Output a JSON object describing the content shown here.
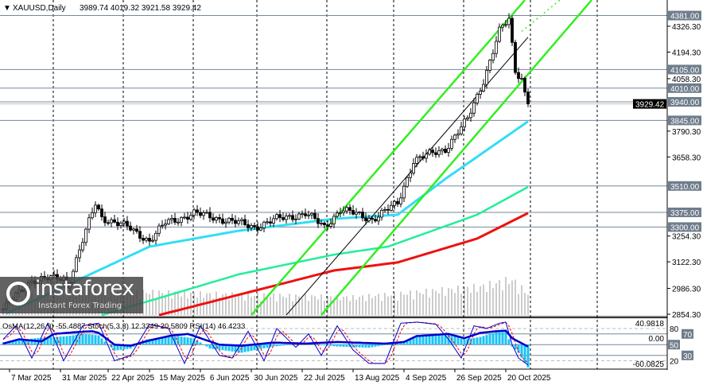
{
  "header": {
    "symbol": "XAUUSD,Daily",
    "ohlc": "3989.74 4019.32 3921.58 3929.42"
  },
  "indicator_label": "OsMA(12,26,9) -55.4887  Stoch(5,3,3) 12.3349 20.5809  RSI(14) 46.4233",
  "logo": {
    "brand": "instaforex",
    "tagline": "Instant Forex Trading"
  },
  "chart_data": {
    "type": "candlestick",
    "title": "XAUUSD,Daily",
    "bars": 166,
    "ylim": [
      2854.3,
      4381
    ],
    "price_ticks": [
      "4326.30",
      "4194.30",
      "4058.30",
      "3790.30",
      "3658.30",
      "3254.30",
      "3122.30",
      "2986.30",
      "2854.30"
    ],
    "price_tick_values": [
      4326.3,
      4194.3,
      4058.3,
      3790.3,
      3658.3,
      3254.3,
      3122.3,
      2986.3,
      2854.3
    ],
    "levels": [
      {
        "value": 4381,
        "label": "4381.00"
      },
      {
        "value": 4105,
        "label": "4105.00"
      },
      {
        "value": 4010,
        "label": "4010.00"
      },
      {
        "value": 3940,
        "label": "3940.00"
      },
      {
        "value": 3845,
        "label": "3845.00"
      },
      {
        "value": 3510,
        "label": "3510.00"
      },
      {
        "value": 3375,
        "label": "3375.00"
      },
      {
        "value": 3300,
        "label": "3300.00"
      }
    ],
    "current_price": {
      "value": 3929.42,
      "label": "3929.42"
    },
    "date_labels": [
      {
        "bar": 2,
        "label": "7 Mar 2025"
      },
      {
        "bar": 18,
        "label": "31 Mar 2025"
      },
      {
        "bar": 33,
        "label": "22 Apr 2025"
      },
      {
        "bar": 46,
        "label": "15 May 2025"
      },
      {
        "bar": 62,
        "label": "6 Jun 2025"
      },
      {
        "bar": 78,
        "label": "30 Jun 2025"
      },
      {
        "bar": 94,
        "label": "22 Jul 2025"
      },
      {
        "bar": 110,
        "label": "13 Aug 2025"
      },
      {
        "bar": 126,
        "label": "4 Sep 2025"
      },
      {
        "bar": 142,
        "label": "26 Sep 2025"
      },
      {
        "bar": 158,
        "label": "20 Oct 2025"
      }
    ],
    "grid_bars": [
      16,
      38,
      60,
      80,
      102,
      123,
      145,
      166,
      187
    ],
    "close_path": [
      [
        0,
        2880
      ],
      [
        9,
        3030
      ],
      [
        19,
        3040
      ],
      [
        20,
        2990
      ],
      [
        29,
        3420
      ],
      [
        31,
        3350
      ],
      [
        39,
        3300
      ],
      [
        46,
        3230
      ],
      [
        51,
        3320
      ],
      [
        60,
        3370
      ],
      [
        69,
        3340
      ],
      [
        79,
        3300
      ],
      [
        86,
        3340
      ],
      [
        95,
        3370
      ],
      [
        101,
        3300
      ],
      [
        106,
        3390
      ],
      [
        116,
        3340
      ],
      [
        124,
        3420
      ],
      [
        129,
        3640
      ],
      [
        139,
        3700
      ],
      [
        146,
        3850
      ],
      [
        151,
        4050
      ],
      [
        156,
        4300
      ],
      [
        159,
        4360
      ],
      [
        161,
        4100
      ],
      [
        163,
        4060
      ],
      [
        164,
        3989.74
      ],
      [
        165,
        3929.42
      ]
    ],
    "ma_fast": [
      [
        1,
        2858
      ],
      [
        46,
        3200
      ],
      [
        74,
        3281
      ],
      [
        104,
        3342
      ],
      [
        124,
        3363
      ],
      [
        139,
        3546
      ],
      [
        165,
        3840
      ]
    ],
    "ma_mid": [
      [
        31,
        2850
      ],
      [
        74,
        3058
      ],
      [
        104,
        3159
      ],
      [
        121,
        3200
      ],
      [
        149,
        3363
      ],
      [
        165,
        3505
      ]
    ],
    "ma_slow": [
      [
        49,
        2850
      ],
      [
        104,
        3078
      ],
      [
        124,
        3119
      ],
      [
        149,
        3241
      ],
      [
        165,
        3371
      ]
    ],
    "channel_lines": [
      {
        "from": [
          78,
          2850
        ],
        "to": [
          164,
          4460
        ]
      },
      {
        "from": [
          100,
          2850
        ],
        "to": [
          185,
          4460
        ]
      }
    ],
    "volume_path": [
      [
        0,
        25
      ],
      [
        30,
        35
      ],
      [
        60,
        30
      ],
      [
        110,
        25
      ],
      [
        125,
        30
      ],
      [
        150,
        40
      ],
      [
        160,
        50
      ],
      [
        165,
        30
      ]
    ],
    "oscillator": {
      "ylim": [
        -60.0825,
        40.9818
      ],
      "levels": [
        "80",
        "70",
        "50",
        "30",
        "20"
      ],
      "level_values": [
        80,
        70,
        50,
        30,
        20
      ],
      "axis_labels": [
        "40.9818",
        "-60.0825",
        "0.00"
      ],
      "osma": [
        [
          0,
          5
        ],
        [
          10,
          15
        ],
        [
          20,
          20
        ],
        [
          25,
          25
        ],
        [
          30,
          22
        ],
        [
          35,
          -15
        ],
        [
          40,
          -10
        ],
        [
          45,
          12
        ],
        [
          55,
          20
        ],
        [
          60,
          15
        ],
        [
          65,
          -10
        ],
        [
          75,
          -20
        ],
        [
          85,
          -5
        ],
        [
          95,
          3
        ],
        [
          105,
          -5
        ],
        [
          115,
          -8
        ],
        [
          125,
          5
        ],
        [
          130,
          20
        ],
        [
          140,
          25
        ],
        [
          145,
          12
        ],
        [
          150,
          18
        ],
        [
          155,
          30
        ],
        [
          158,
          30
        ],
        [
          160,
          -5
        ],
        [
          162,
          -20
        ],
        [
          165,
          -55.4887
        ]
      ],
      "rsi": [
        [
          0,
          52
        ],
        [
          5,
          60
        ],
        [
          12,
          56
        ],
        [
          16,
          70
        ],
        [
          22,
          73
        ],
        [
          28,
          75
        ],
        [
          30,
          72
        ],
        [
          35,
          50
        ],
        [
          40,
          48
        ],
        [
          46,
          58
        ],
        [
          53,
          67
        ],
        [
          58,
          70
        ],
        [
          62,
          62
        ],
        [
          68,
          50
        ],
        [
          75,
          48
        ],
        [
          85,
          54
        ],
        [
          95,
          52
        ],
        [
          105,
          55
        ],
        [
          115,
          53
        ],
        [
          120,
          52
        ],
        [
          126,
          55
        ],
        [
          130,
          66
        ],
        [
          140,
          70
        ],
        [
          145,
          62
        ],
        [
          150,
          72
        ],
        [
          155,
          75
        ],
        [
          158,
          76
        ],
        [
          160,
          62
        ],
        [
          165,
          46.42
        ]
      ],
      "stoch": [
        [
          0,
          60
        ],
        [
          4,
          85
        ],
        [
          9,
          25
        ],
        [
          14,
          90
        ],
        [
          19,
          20
        ],
        [
          25,
          85
        ],
        [
          30,
          90
        ],
        [
          35,
          20
        ],
        [
          40,
          30
        ],
        [
          46,
          88
        ],
        [
          52,
          80
        ],
        [
          57,
          15
        ],
        [
          62,
          85
        ],
        [
          68,
          30
        ],
        [
          72,
          25
        ],
        [
          77,
          75
        ],
        [
          82,
          20
        ],
        [
          86,
          80
        ],
        [
          92,
          45
        ],
        [
          96,
          70
        ],
        [
          100,
          30
        ],
        [
          105,
          85
        ],
        [
          110,
          40
        ],
        [
          115,
          15
        ],
        [
          120,
          15
        ],
        [
          125,
          90
        ],
        [
          130,
          92
        ],
        [
          136,
          88
        ],
        [
          140,
          60
        ],
        [
          144,
          25
        ],
        [
          148,
          85
        ],
        [
          152,
          80
        ],
        [
          156,
          90
        ],
        [
          158,
          92
        ],
        [
          160,
          50
        ],
        [
          162,
          25
        ],
        [
          165,
          12.33
        ]
      ]
    }
  },
  "colors": {
    "ma_fast": "#33ddf5",
    "ma_mid": "#22ee99",
    "ma_slow": "#ee1111",
    "channel": "#33ee22",
    "level_line": "#778899",
    "level_box": "#6f7d8c",
    "osma": "#19c3f5",
    "rsi": "#0000cc",
    "signal": "#ff0000"
  }
}
